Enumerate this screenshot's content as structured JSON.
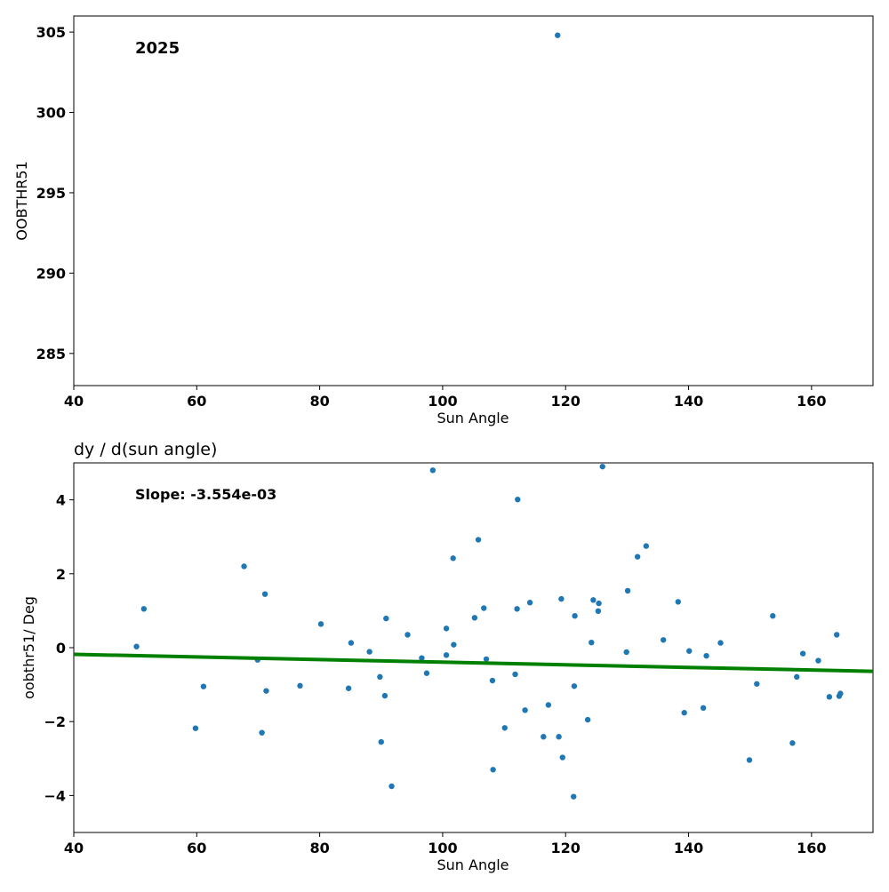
{
  "chart_data": [
    {
      "type": "scatter",
      "annotation": "2025",
      "xlabel": "Sun Angle",
      "ylabel": "OOBTHR51",
      "xlim": [
        40,
        170
      ],
      "ylim": [
        283,
        306
      ],
      "xticks": [
        40,
        60,
        80,
        100,
        120,
        140,
        160
      ],
      "yticks": [
        285,
        290,
        295,
        300,
        305
      ],
      "point_color": "#1f77b4",
      "series": [
        {
          "points": [
            [
              118.7,
              304.8
            ]
          ]
        }
      ]
    },
    {
      "type": "scatter",
      "title": "dy / d(sun angle)",
      "annotation": "Slope: -3.554e-03",
      "xlabel": "Sun Angle",
      "ylabel": "oobthr51/ Deg",
      "xlim": [
        40,
        170
      ],
      "ylim": [
        -5,
        5
      ],
      "xticks": [
        40,
        60,
        80,
        100,
        120,
        140,
        160
      ],
      "yticks": [
        -4,
        -2,
        0,
        2,
        4
      ],
      "yticklabels": [
        "−4",
        "−2",
        "0",
        "2",
        "4"
      ],
      "point_color": "#1f77b4",
      "line_color": "#008000",
      "fit_line": {
        "x": [
          40,
          170
        ],
        "y": [
          -0.18,
          -0.64
        ]
      },
      "series": [
        {
          "points": [
            [
              50.2,
              0.03
            ],
            [
              51.4,
              1.05
            ],
            [
              59.8,
              -2.18
            ],
            [
              61.1,
              -1.05
            ],
            [
              67.7,
              2.2
            ],
            [
              69.9,
              -0.33
            ],
            [
              70.6,
              -2.3
            ],
            [
              71.1,
              1.45
            ],
            [
              71.3,
              -1.17
            ],
            [
              76.8,
              -1.03
            ],
            [
              80.2,
              0.64
            ],
            [
              84.7,
              -1.1
            ],
            [
              85.1,
              0.13
            ],
            [
              88.1,
              -0.11
            ],
            [
              89.8,
              -0.79
            ],
            [
              90.0,
              -2.55
            ],
            [
              90.6,
              -1.3
            ],
            [
              90.8,
              0.79
            ],
            [
              91.7,
              -3.75
            ],
            [
              94.3,
              0.35
            ],
            [
              96.6,
              -0.28
            ],
            [
              97.4,
              -0.69
            ],
            [
              98.4,
              4.8
            ],
            [
              100.6,
              -0.2
            ],
            [
              100.6,
              0.52
            ],
            [
              101.7,
              2.42
            ],
            [
              101.8,
              0.08
            ],
            [
              105.2,
              0.81
            ],
            [
              105.8,
              2.92
            ],
            [
              106.7,
              1.07
            ],
            [
              107.1,
              -0.31
            ],
            [
              108.1,
              -0.89
            ],
            [
              108.2,
              -3.3
            ],
            [
              110.1,
              -2.17
            ],
            [
              111.8,
              -0.72
            ],
            [
              112.1,
              1.05
            ],
            [
              112.2,
              4.01
            ],
            [
              113.4,
              -1.69
            ],
            [
              114.2,
              1.22
            ],
            [
              116.4,
              -2.41
            ],
            [
              117.2,
              -1.55
            ],
            [
              118.9,
              -2.41
            ],
            [
              119.3,
              1.32
            ],
            [
              119.5,
              -2.97
            ],
            [
              121.3,
              -4.03
            ],
            [
              121.4,
              -1.04
            ],
            [
              121.5,
              0.86
            ],
            [
              123.6,
              -1.95
            ],
            [
              124.2,
              0.14
            ],
            [
              124.5,
              1.29
            ],
            [
              125.3,
              0.99
            ],
            [
              125.4,
              1.2
            ],
            [
              126.0,
              4.9
            ],
            [
              129.9,
              -0.12
            ],
            [
              130.1,
              1.54
            ],
            [
              131.7,
              2.46
            ],
            [
              133.1,
              2.75
            ],
            [
              135.9,
              0.21
            ],
            [
              138.3,
              1.24
            ],
            [
              139.3,
              -1.76
            ],
            [
              140.1,
              -0.09
            ],
            [
              142.4,
              -1.63
            ],
            [
              142.9,
              -0.22
            ],
            [
              145.2,
              0.13
            ],
            [
              149.9,
              -3.04
            ],
            [
              151.1,
              -0.98
            ],
            [
              153.7,
              0.86
            ],
            [
              156.9,
              -2.58
            ],
            [
              157.6,
              -0.79
            ],
            [
              158.6,
              -0.16
            ],
            [
              161.1,
              -0.35
            ],
            [
              162.9,
              -1.33
            ],
            [
              164.1,
              0.35
            ],
            [
              164.5,
              -1.31
            ],
            [
              164.7,
              -1.24
            ]
          ]
        }
      ]
    }
  ]
}
